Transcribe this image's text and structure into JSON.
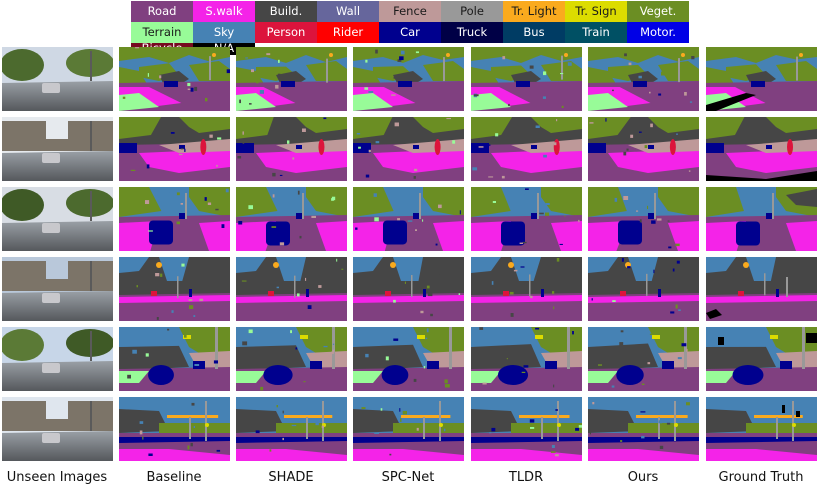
{
  "legend": [
    {
      "label": "Road",
      "color": "#804080"
    },
    {
      "label": "S.walk",
      "color": "#f423e8"
    },
    {
      "label": "Build.",
      "color": "#464646"
    },
    {
      "label": "Wall",
      "color": "#66669c"
    },
    {
      "label": "Fence",
      "color": "#be9999"
    },
    {
      "label": "Pole",
      "color": "#999999"
    },
    {
      "label": "Tr. Light",
      "color": "#faaa1e"
    },
    {
      "label": "Tr. Sign",
      "color": "#dcdc00"
    },
    {
      "label": "Veget.",
      "color": "#6b8e23"
    },
    {
      "label": "Terrain",
      "color": "#98fb98"
    },
    {
      "label": "Sky",
      "color": "#4682b4"
    },
    {
      "label": "Person",
      "color": "#dc143c"
    },
    {
      "label": "Rider",
      "color": "#ff0000"
    },
    {
      "label": "Car",
      "color": "#00008e"
    },
    {
      "label": "Truck",
      "color": "#000046"
    },
    {
      "label": "Bus",
      "color": "#003c64"
    },
    {
      "label": "Train",
      "color": "#005064"
    },
    {
      "label": "Motor.",
      "color": "#0000e6"
    },
    {
      "label": "Bicycle",
      "color": "#770b20"
    },
    {
      "label": "N/A",
      "color": "#000000"
    }
  ],
  "columns": [
    "Unseen Images",
    "Baseline",
    "SHADE",
    "SPC-Net",
    "TLDR",
    "Ours",
    "Ground Truth"
  ],
  "rows": 6
}
